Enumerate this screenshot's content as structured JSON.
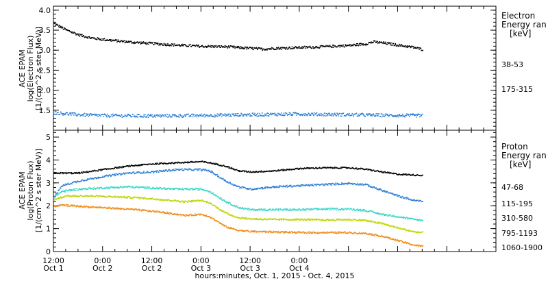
{
  "chart_data": [
    {
      "type": "scatter",
      "ylabel": [
        "ACE EPAM",
        "log(Electron Flux)",
        "[1/(cm^2 s ster MeV)]"
      ],
      "ylim": [
        1.0,
        4.1
      ],
      "yticks": [
        "1.5",
        "2.0",
        "2.5",
        "3.0",
        "3.5",
        "4.0"
      ],
      "legend_title": [
        "Electron",
        "Energy ran",
        "[keV]"
      ],
      "series": [
        {
          "name": "38-53",
          "color": "#000000",
          "jitter": 0.03,
          "points": [
            [
              0.0,
              3.68
            ],
            [
              3,
              3.52
            ],
            [
              6,
              3.4
            ],
            [
              9,
              3.32
            ],
            [
              12,
              3.28
            ],
            [
              18,
              3.22
            ],
            [
              24,
              3.18
            ],
            [
              30,
              3.14
            ],
            [
              36,
              3.11
            ],
            [
              42,
              3.1
            ],
            [
              48,
              3.06
            ],
            [
              51,
              3.04
            ],
            [
              54,
              3.06
            ],
            [
              60,
              3.08
            ],
            [
              66,
              3.1
            ],
            [
              72,
              3.13
            ],
            [
              76,
              3.17
            ],
            [
              78,
              3.22
            ],
            [
              80,
              3.2
            ],
            [
              84,
              3.14
            ],
            [
              88,
              3.08
            ],
            [
              90,
              3.03
            ]
          ]
        },
        {
          "name": "175-315",
          "color": "#2a7fd4",
          "jitter": 0.04,
          "points": [
            [
              0.0,
              1.45
            ],
            [
              6,
              1.4
            ],
            [
              12,
              1.38
            ],
            [
              24,
              1.37
            ],
            [
              36,
              1.38
            ],
            [
              48,
              1.4
            ],
            [
              60,
              1.42
            ],
            [
              72,
              1.4
            ],
            [
              84,
              1.38
            ],
            [
              90,
              1.38
            ]
          ]
        }
      ]
    },
    {
      "type": "scatter",
      "ylabel": [
        "ACE EPAM",
        "log(Proton Flux)",
        "[1/(cm^2 s ster MeV)]"
      ],
      "ylim": [
        0,
        5.3
      ],
      "yticks": [
        "0",
        "1",
        "2",
        "3",
        "4",
        "5"
      ],
      "legend_title": [
        "Proton",
        "Energy ran",
        "[keV]"
      ],
      "series": [
        {
          "name": "47-68",
          "color": "#000000",
          "jitter": 0.03,
          "points": [
            [
              0.0,
              3.45
            ],
            [
              6,
              3.45
            ],
            [
              12,
              3.6
            ],
            [
              18,
              3.75
            ],
            [
              24,
              3.85
            ],
            [
              30,
              3.9
            ],
            [
              36,
              3.95
            ],
            [
              38,
              3.9
            ],
            [
              42,
              3.75
            ],
            [
              45,
              3.55
            ],
            [
              48,
              3.5
            ],
            [
              54,
              3.55
            ],
            [
              60,
              3.65
            ],
            [
              66,
              3.68
            ],
            [
              72,
              3.68
            ],
            [
              76,
              3.62
            ],
            [
              80,
              3.5
            ],
            [
              84,
              3.4
            ],
            [
              90,
              3.35
            ]
          ]
        },
        {
          "name": "115-195",
          "color": "#2a7fd4",
          "jitter": 0.04,
          "points": [
            [
              0.0,
              2.4
            ],
            [
              2,
              2.9
            ],
            [
              6,
              3.1
            ],
            [
              12,
              3.3
            ],
            [
              18,
              3.45
            ],
            [
              24,
              3.5
            ],
            [
              30,
              3.6
            ],
            [
              36,
              3.6
            ],
            [
              38,
              3.55
            ],
            [
              42,
              3.1
            ],
            [
              45,
              2.85
            ],
            [
              48,
              2.75
            ],
            [
              54,
              2.85
            ],
            [
              60,
              2.9
            ],
            [
              66,
              2.95
            ],
            [
              72,
              3.0
            ],
            [
              76,
              2.95
            ],
            [
              80,
              2.7
            ],
            [
              84,
              2.45
            ],
            [
              88,
              2.25
            ],
            [
              90,
              2.22
            ]
          ]
        },
        {
          "name": "310-580",
          "color": "#33d6c8",
          "jitter": 0.04,
          "points": [
            [
              0.0,
              2.4
            ],
            [
              2,
              2.65
            ],
            [
              6,
              2.75
            ],
            [
              12,
              2.8
            ],
            [
              18,
              2.85
            ],
            [
              24,
              2.8
            ],
            [
              30,
              2.75
            ],
            [
              36,
              2.75
            ],
            [
              38,
              2.65
            ],
            [
              42,
              2.2
            ],
            [
              45,
              1.95
            ],
            [
              48,
              1.85
            ],
            [
              54,
              1.85
            ],
            [
              60,
              1.85
            ],
            [
              66,
              1.88
            ],
            [
              72,
              1.88
            ],
            [
              76,
              1.82
            ],
            [
              80,
              1.65
            ],
            [
              84,
              1.55
            ],
            [
              88,
              1.42
            ],
            [
              90,
              1.38
            ]
          ]
        },
        {
          "name": "795-1193",
          "color": "#bcd400",
          "jitter": 0.035,
          "points": [
            [
              0.0,
              2.3
            ],
            [
              3,
              2.45
            ],
            [
              8,
              2.45
            ],
            [
              14,
              2.42
            ],
            [
              20,
              2.38
            ],
            [
              26,
              2.3
            ],
            [
              32,
              2.2
            ],
            [
              36,
              2.25
            ],
            [
              38,
              2.15
            ],
            [
              42,
              1.7
            ],
            [
              45,
              1.5
            ],
            [
              48,
              1.45
            ],
            [
              54,
              1.42
            ],
            [
              60,
              1.42
            ],
            [
              66,
              1.4
            ],
            [
              72,
              1.42
            ],
            [
              76,
              1.38
            ],
            [
              80,
              1.25
            ],
            [
              84,
              1.05
            ],
            [
              88,
              0.88
            ],
            [
              90,
              0.85
            ]
          ]
        },
        {
          "name": "1060-1900",
          "color": "#f08a14",
          "jitter": 0.035,
          "points": [
            [
              0.0,
              2.0
            ],
            [
              2,
              2.05
            ],
            [
              8,
              1.98
            ],
            [
              14,
              1.92
            ],
            [
              20,
              1.85
            ],
            [
              26,
              1.75
            ],
            [
              32,
              1.6
            ],
            [
              36,
              1.65
            ],
            [
              38,
              1.55
            ],
            [
              42,
              1.1
            ],
            [
              45,
              0.95
            ],
            [
              48,
              0.9
            ],
            [
              54,
              0.88
            ],
            [
              60,
              0.85
            ],
            [
              66,
              0.85
            ],
            [
              72,
              0.85
            ],
            [
              76,
              0.82
            ],
            [
              80,
              0.7
            ],
            [
              84,
              0.5
            ],
            [
              88,
              0.3
            ],
            [
              90,
              0.25
            ]
          ]
        }
      ]
    }
  ],
  "x_axis": {
    "xlabel": "hours:minutes, Oct.  1, 2015 - Oct.  4, 2015",
    "xlim_hours": [
      0,
      108
    ],
    "ticks": [
      {
        "hour": 0,
        "time": "12:00",
        "day": "Oct 1"
      },
      {
        "hour": 12,
        "time": "0:00",
        "day": "Oct 2"
      },
      {
        "hour": 24,
        "time": "12:00",
        "day": "Oct 2"
      },
      {
        "hour": 36,
        "time": "0:00",
        "day": "Oct 3"
      },
      {
        "hour": 48,
        "time": "12:00",
        "day": "Oct 3"
      },
      {
        "hour": 60,
        "time": "0:00",
        "day": "Oct 4"
      }
    ]
  }
}
